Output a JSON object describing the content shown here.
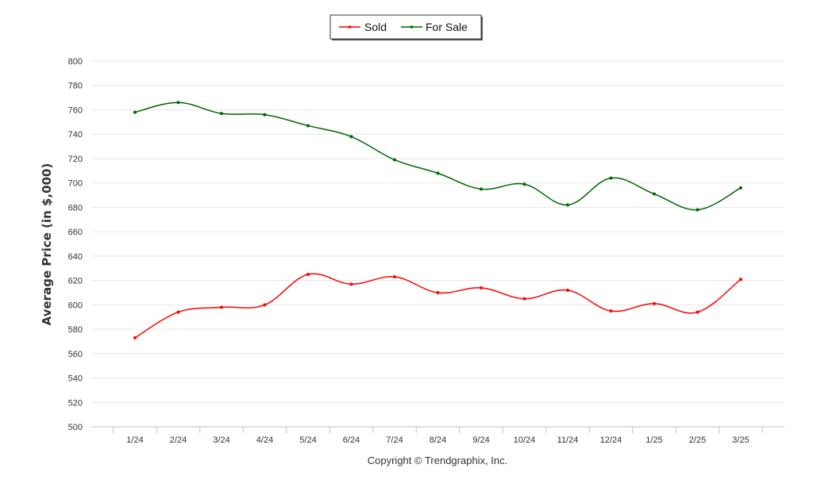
{
  "legend": {
    "placement": "top-center",
    "items": [
      {
        "label": "Sold",
        "color": "#ff0000"
      },
      {
        "label": "For Sale",
        "color": "#006600"
      }
    ]
  },
  "copyright": "Copyright © Trendgraphix, Inc.",
  "chart_data": {
    "type": "line",
    "ylabel": "Average Price (in $,000)",
    "xlabel": "",
    "ylim": [
      500,
      800
    ],
    "ytick_step": 20,
    "grid": true,
    "categories": [
      "1/24",
      "2/24",
      "3/24",
      "4/24",
      "5/24",
      "6/24",
      "7/24",
      "8/24",
      "9/24",
      "10/24",
      "11/24",
      "12/24",
      "1/25",
      "2/25",
      "3/25"
    ],
    "series": [
      {
        "name": "Sold",
        "color": "#ff0000",
        "values": [
          573,
          594,
          598,
          600,
          625,
          617,
          623,
          610,
          614,
          605,
          612,
          595,
          601,
          594,
          621
        ]
      },
      {
        "name": "For Sale",
        "color": "#006600",
        "values": [
          758,
          766,
          757,
          756,
          747,
          738,
          719,
          708,
          695,
          699,
          682,
          704,
          691,
          678,
          696
        ]
      }
    ]
  }
}
